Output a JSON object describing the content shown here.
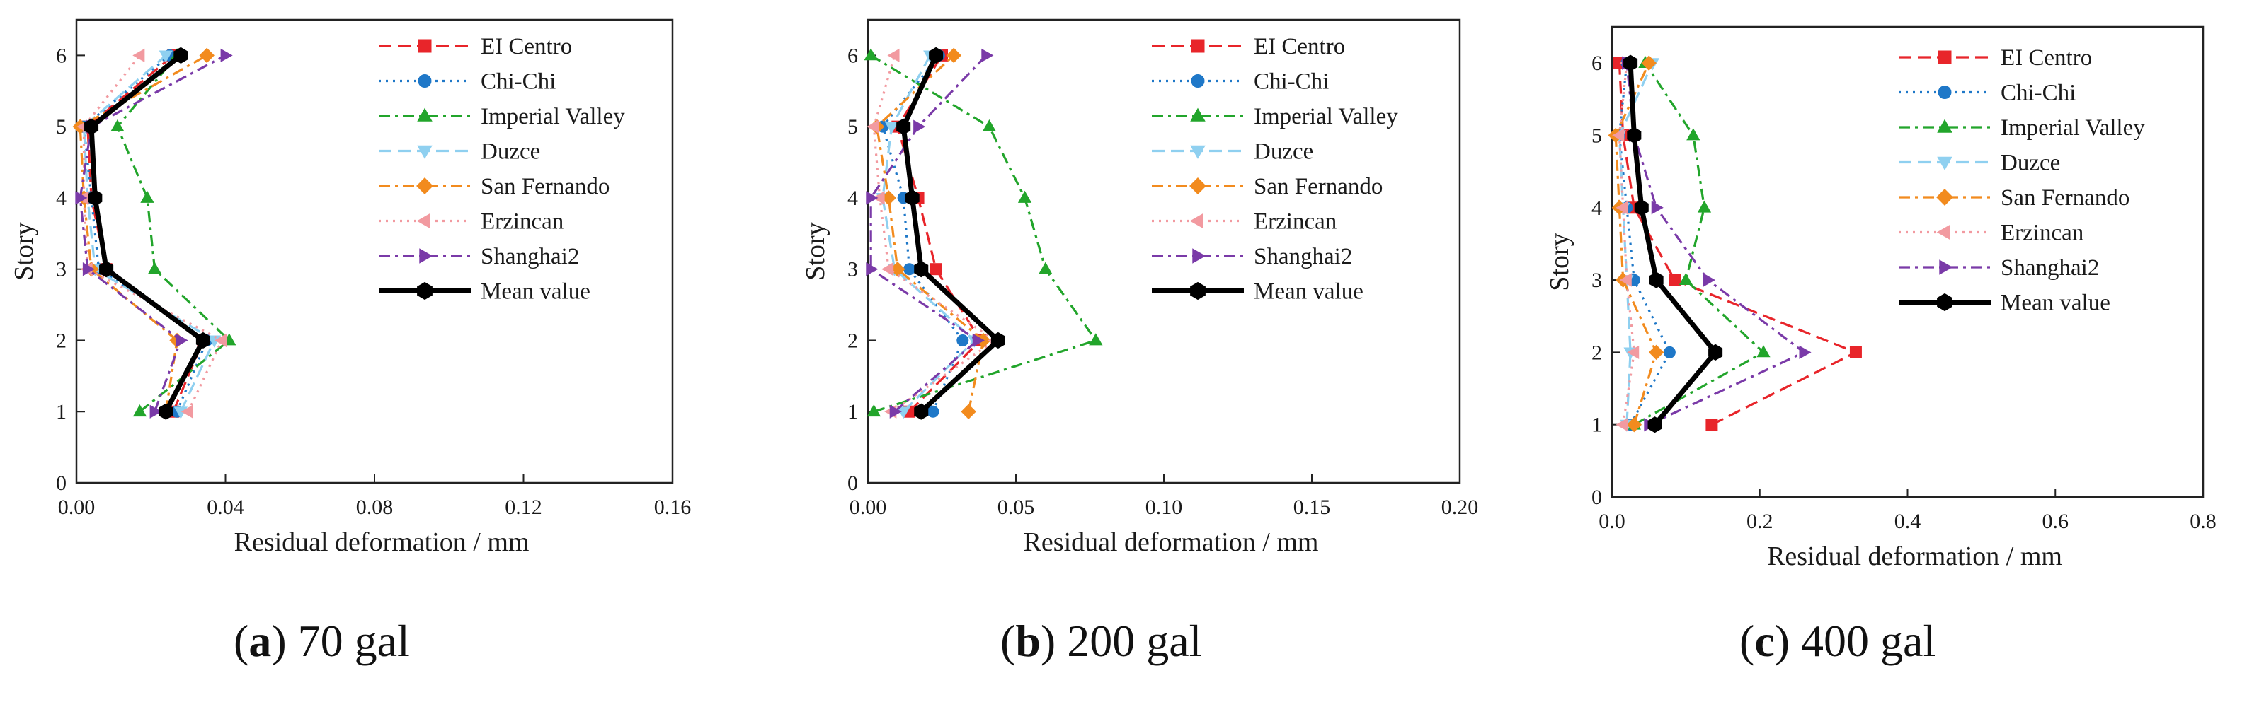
{
  "chart_data": [
    {
      "type": "line",
      "panel": "a",
      "caption_letter": "a",
      "caption_text": "70 gal",
      "xlabel": "Residual deformation / mm",
      "ylabel": "Story",
      "xlim": [
        0,
        0.16
      ],
      "ylim": [
        0,
        6.5
      ],
      "xticks": [
        0,
        0.04,
        0.08,
        0.12,
        0.16
      ],
      "xtick_labels": [
        "0.00",
        "0.04",
        "0.08",
        "0.12",
        "0.16"
      ],
      "yticks": [
        0,
        1,
        2,
        3,
        4,
        5,
        6
      ],
      "legend_position": "top-right",
      "stories": [
        1,
        2,
        3,
        4,
        5,
        6
      ],
      "series": [
        {
          "name": "EI Centro",
          "values": [
            0.026,
            0.034,
            0.008,
            0.004,
            0.003,
            0.026
          ]
        },
        {
          "name": "Chi-Chi",
          "values": [
            0.027,
            0.035,
            0.006,
            0.004,
            0.002,
            0.025
          ]
        },
        {
          "name": "Imperial Valley",
          "values": [
            0.017,
            0.041,
            0.021,
            0.019,
            0.011,
            0.027
          ]
        },
        {
          "name": "Duzce",
          "values": [
            0.028,
            0.037,
            0.005,
            0.003,
            0.002,
            0.024
          ]
        },
        {
          "name": "San Fernando",
          "values": [
            0.024,
            0.027,
            0.004,
            0.002,
            0.001,
            0.035
          ]
        },
        {
          "name": "Erzincan",
          "values": [
            0.03,
            0.039,
            0.003,
            0.002,
            0.002,
            0.017
          ]
        },
        {
          "name": "Shanghai2",
          "values": [
            0.021,
            0.028,
            0.003,
            0.001,
            0.004,
            0.04
          ]
        },
        {
          "name": "Mean value",
          "values": [
            0.024,
            0.034,
            0.008,
            0.005,
            0.004,
            0.028
          ]
        }
      ]
    },
    {
      "type": "line",
      "panel": "b",
      "caption_letter": "b",
      "caption_text": "200 gal",
      "xlabel": "Residual deformation / mm",
      "ylabel": "Story",
      "xlim": [
        0,
        0.2
      ],
      "ylim": [
        0,
        6.5
      ],
      "xticks": [
        0,
        0.05,
        0.1,
        0.15,
        0.2
      ],
      "xtick_labels": [
        "0.00",
        "0.05",
        "0.10",
        "0.15",
        "0.20"
      ],
      "yticks": [
        0,
        1,
        2,
        3,
        4,
        5,
        6
      ],
      "legend_position": "top-right",
      "stories": [
        1,
        2,
        3,
        4,
        5,
        6
      ],
      "series": [
        {
          "name": "EI Centro",
          "values": [
            0.014,
            0.038,
            0.023,
            0.017,
            0.01,
            0.025
          ]
        },
        {
          "name": "Chi-Chi",
          "values": [
            0.022,
            0.032,
            0.014,
            0.012,
            0.005,
            0.024
          ]
        },
        {
          "name": "Imperial Valley",
          "values": [
            0.002,
            0.077,
            0.06,
            0.053,
            0.041,
            0.001
          ]
        },
        {
          "name": "Duzce",
          "values": [
            0.012,
            0.036,
            0.009,
            0.005,
            0.008,
            0.021
          ]
        },
        {
          "name": "San Fernando",
          "values": [
            0.034,
            0.039,
            0.01,
            0.007,
            0.003,
            0.029
          ]
        },
        {
          "name": "Erzincan",
          "values": [
            0.008,
            0.043,
            0.007,
            0.004,
            0.002,
            0.009
          ]
        },
        {
          "name": "Shanghai2",
          "values": [
            0.009,
            0.037,
            0.001,
            0.001,
            0.017,
            0.04
          ]
        },
        {
          "name": "Mean value",
          "values": [
            0.018,
            0.044,
            0.018,
            0.015,
            0.012,
            0.023
          ]
        }
      ]
    },
    {
      "type": "line",
      "panel": "c",
      "caption_letter": "c",
      "caption_text": "400 gal",
      "xlabel": "Residual deformation / mm",
      "ylabel": "Story",
      "xlim": [
        0,
        0.8
      ],
      "ylim": [
        0,
        6.5
      ],
      "xticks": [
        0,
        0.2,
        0.4,
        0.6,
        0.8
      ],
      "xtick_labels": [
        "0.0",
        "0.2",
        "0.4",
        "0.6",
        "0.8"
      ],
      "yticks": [
        0,
        1,
        2,
        3,
        4,
        5,
        6
      ],
      "legend_position": "top-right",
      "stories": [
        1,
        2,
        3,
        4,
        5,
        6
      ],
      "series": [
        {
          "name": "EI Centro",
          "values": [
            0.135,
            0.33,
            0.085,
            0.03,
            0.015,
            0.01
          ]
        },
        {
          "name": "Chi-Chi",
          "values": [
            0.025,
            0.078,
            0.03,
            0.02,
            0.01,
            0.02
          ]
        },
        {
          "name": "Imperial Valley",
          "values": [
            0.03,
            0.205,
            0.1,
            0.125,
            0.11,
            0.045
          ]
        },
        {
          "name": "Duzce",
          "values": [
            0.02,
            0.025,
            0.02,
            0.015,
            0.01,
            0.055
          ]
        },
        {
          "name": "San Fernando",
          "values": [
            0.03,
            0.06,
            0.015,
            0.01,
            0.005,
            0.05
          ]
        },
        {
          "name": "Erzincan",
          "values": [
            0.015,
            0.03,
            0.02,
            0.015,
            0.01,
            0.02
          ]
        },
        {
          "name": "Shanghai2",
          "values": [
            0.05,
            0.26,
            0.13,
            0.06,
            0.03,
            0.02
          ]
        },
        {
          "name": "Mean value",
          "values": [
            0.058,
            0.14,
            0.06,
            0.04,
            0.03,
            0.025
          ]
        }
      ]
    }
  ],
  "series_styles": [
    {
      "name": "EI Centro",
      "color": "#e8252a",
      "dash": "long-dash",
      "marker": "square"
    },
    {
      "name": "Chi-Chi",
      "color": "#1f78c8",
      "dash": "dot",
      "marker": "circle"
    },
    {
      "name": "Imperial Valley",
      "color": "#22a52b",
      "dash": "dash-dot",
      "marker": "triangle-up"
    },
    {
      "name": "Duzce",
      "color": "#8fd0f0",
      "dash": "long-dash",
      "marker": "triangle-down"
    },
    {
      "name": "San Fernando",
      "color": "#f28b1e",
      "dash": "dash-dot",
      "marker": "diamond"
    },
    {
      "name": "Erzincan",
      "color": "#f29aa0",
      "dash": "dot",
      "marker": "triangle-left"
    },
    {
      "name": "Shanghai2",
      "color": "#7a3aa8",
      "dash": "dash-dot",
      "marker": "triangle-right"
    },
    {
      "name": "Mean value",
      "color": "#000000",
      "dash": "solid",
      "marker": "hexagon"
    }
  ]
}
